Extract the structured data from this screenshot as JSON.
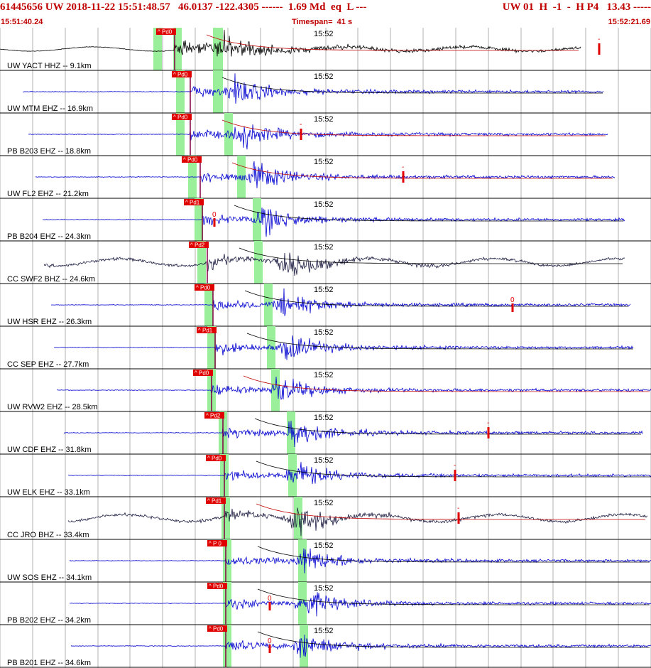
{
  "header": {
    "summary": "61445656 UW 2018-11-22 15:51:48.57   46.0137 -122.4305 ------  1.69 Md  eq  L ---",
    "right": "UW 01  H  -1  -  H P4   13.43 -----",
    "start_time": "15:51:40.24",
    "timespan": "Timespan=  41 s",
    "end_time": "15:52:21.69"
  },
  "colors": {
    "header_text": "#c00000",
    "trace_blue": "#0000d0",
    "trace_dark": "#1a1a40",
    "trace_black": "#000000",
    "pick_box": "#e00000",
    "p_window": "#9af09a",
    "grid": "#7f7f7f",
    "coda_curve_red": "#c00000",
    "coda_curve_black": "#000000"
  },
  "minute_label": "15:52",
  "traces": [
    {
      "label": "UW YACT HHZ -- 9.1km",
      "color": "black",
      "pick": "Pd0",
      "coda_mark": "-",
      "zero": ""
    },
    {
      "label": "UW MTM EHZ -- 16.9km",
      "color": "blue",
      "pick": "Pd0",
      "coda_mark": "",
      "zero": ""
    },
    {
      "label": "PB B203 EHZ -- 18.8km",
      "color": "blue",
      "pick": "Pd0",
      "coda_mark": "-",
      "zero": ""
    },
    {
      "label": "UW FL2 EHZ -- 21.2km",
      "color": "blue",
      "pick": "Pd0",
      "coda_mark": "-",
      "zero": ""
    },
    {
      "label": "PB B204 EHZ -- 24.3km",
      "color": "blue",
      "pick": "Pd1",
      "coda_mark": "",
      "zero": "0"
    },
    {
      "label": "CC SWF2 BHZ -- 24.6km",
      "color": "dark",
      "pick": "Pd2",
      "coda_mark": "",
      "zero": ""
    },
    {
      "label": "UW HSR EHZ -- 26.3km",
      "color": "blue",
      "pick": "Pd0",
      "coda_mark": "",
      "zero": "0"
    },
    {
      "label": "CC SEP EHZ -- 27.7km",
      "color": "blue",
      "pick": "Pd1",
      "coda_mark": "",
      "zero": ""
    },
    {
      "label": "UW RVW2 EHZ -- 28.5km",
      "color": "blue",
      "pick": "Pd0",
      "coda_mark": "",
      "zero": ""
    },
    {
      "label": "UW CDF EHZ -- 31.8km",
      "color": "blue",
      "pick": "Pd2",
      "coda_mark": "-",
      "zero": ""
    },
    {
      "label": "UW ELK EHZ -- 33.1km",
      "color": "blue",
      "pick": "Pd0",
      "coda_mark": "-",
      "zero": ""
    },
    {
      "label": "CC JRO BHZ -- 33.4km",
      "color": "dark",
      "pick": "Pd1",
      "coda_mark": "-",
      "zero": ""
    },
    {
      "label": "UW SOS EHZ -- 34.1km",
      "color": "blue",
      "pick": "P 0",
      "coda_mark": "",
      "zero": ""
    },
    {
      "label": "PB B202 EHZ -- 34.2km",
      "color": "blue",
      "pick": "Pd0",
      "coda_mark": "",
      "zero": "0"
    },
    {
      "label": "PB B201 EHZ -- 34.6km",
      "color": "blue",
      "pick": "Pd0",
      "coda_mark": "",
      "zero": "0"
    }
  ]
}
